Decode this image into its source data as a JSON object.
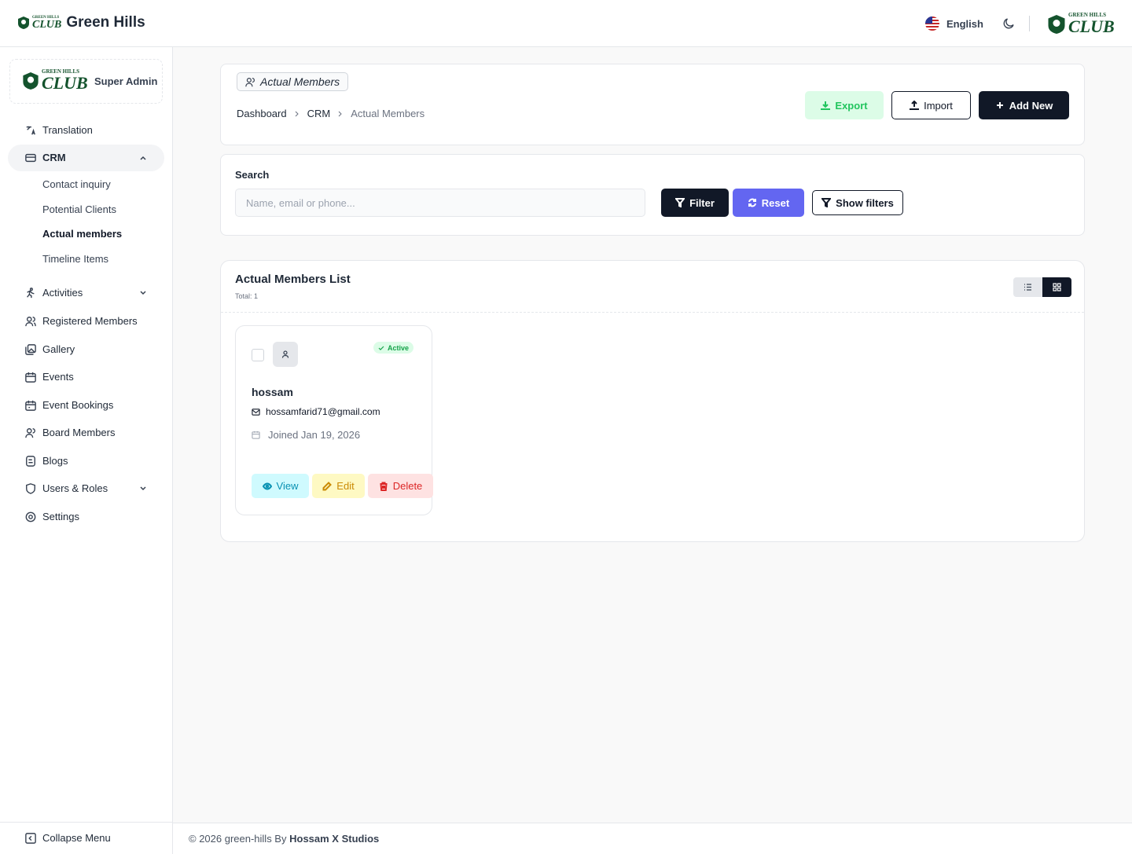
{
  "header": {
    "brand": "Green Hills",
    "logo_top": "GREEN HILLS",
    "logo_bottom": "CLUB",
    "language": "English"
  },
  "sidebar": {
    "role": "Super Admin",
    "menu": [
      "Translation",
      "CRM",
      "Activities",
      "Registered Members",
      "Gallery",
      "Events",
      "Event Bookings",
      "Board Members",
      "Blogs",
      "Users & Roles",
      "Settings"
    ],
    "crm_submenu": [
      "Contact inquiry",
      "Potential Clients",
      "Actual members",
      "Timeline Items"
    ],
    "collapse": "Collapse Menu"
  },
  "page": {
    "title": "Actual Members",
    "breadcrumb": [
      "Dashboard",
      "CRM",
      "Actual Members"
    ],
    "actions": [
      "Export",
      "Import",
      "Add New"
    ]
  },
  "search": {
    "label": "Search",
    "placeholder": "Name, email or phone...",
    "buttons": [
      "Filter",
      "Reset",
      "Show filters"
    ]
  },
  "list": {
    "title": "Actual Members List",
    "total": "Total: 1",
    "card": {
      "status": "Active",
      "name": "hossam",
      "email": "hossamfarid71@gmail.com",
      "joined": "Joined Jan 19, 2026",
      "actions": [
        "View",
        "Edit",
        "Delete"
      ]
    }
  },
  "footer": {
    "text": "© 2026 green-hills By",
    "author": "Hossam X Studios"
  }
}
